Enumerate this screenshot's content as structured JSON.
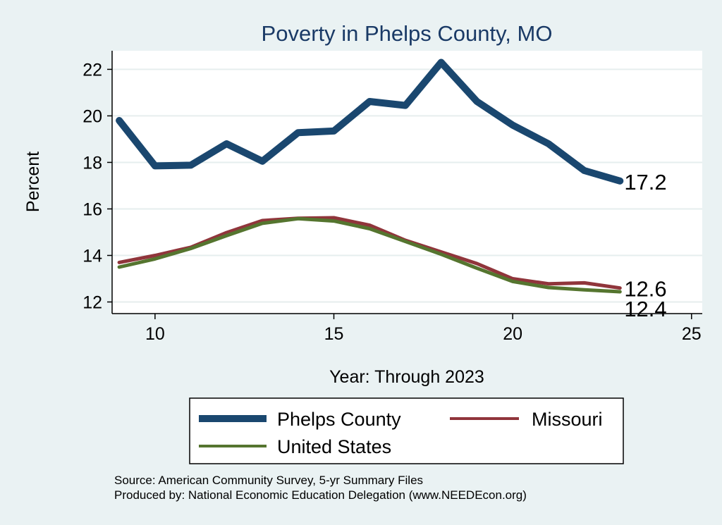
{
  "chart_data": {
    "type": "line",
    "title": "Poverty in Phelps County, MO",
    "xlabel": "Year: Through 2023",
    "ylabel": "Percent",
    "xlim": [
      8.8,
      25.3
    ],
    "ylim": [
      11.5,
      22.8
    ],
    "xticks": [
      10,
      15,
      20,
      25
    ],
    "yticks": [
      12,
      14,
      16,
      18,
      20,
      22
    ],
    "grid": true,
    "legend_position": "bottom",
    "x": [
      9,
      10,
      11,
      12,
      13,
      14,
      15,
      16,
      17,
      18,
      19,
      20,
      21,
      22,
      23
    ],
    "series": [
      {
        "name": "Phelps County",
        "color": "#1a476f",
        "values": [
          19.8,
          17.85,
          17.88,
          18.8,
          18.05,
          19.28,
          19.35,
          20.62,
          20.45,
          22.3,
          20.62,
          19.6,
          18.8,
          17.65,
          17.2
        ],
        "end_label": "17.2"
      },
      {
        "name": "Missouri",
        "color": "#90353b",
        "values": [
          13.7,
          14.0,
          14.35,
          14.98,
          15.5,
          15.6,
          15.62,
          15.3,
          14.65,
          14.15,
          13.65,
          13.0,
          12.78,
          12.82,
          12.6
        ],
        "end_label": "12.6"
      },
      {
        "name": "United States",
        "color": "#55752f",
        "values": [
          13.5,
          13.85,
          14.3,
          14.85,
          15.38,
          15.58,
          15.48,
          15.15,
          14.6,
          14.05,
          13.45,
          12.88,
          12.62,
          12.52,
          12.44
        ],
        "end_label": "12.4"
      }
    ]
  },
  "notes": {
    "line1": "Source: American Community Survey, 5-yr Summary Files",
    "line2": "Produced by: National Economic Education Delegation (www.NEEDEcon.org)"
  }
}
